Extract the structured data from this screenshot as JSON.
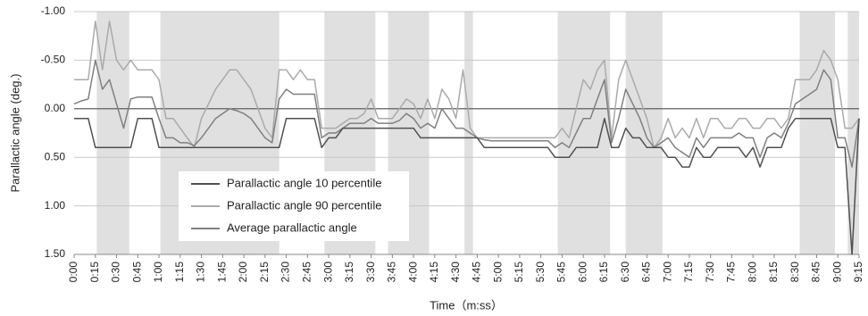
{
  "chart_data": {
    "type": "line",
    "y_label": "Parallactic angle (deg.)",
    "x_label": "Time（m:ss）",
    "y_inverted": true,
    "ylim": [
      -1.0,
      1.5
    ],
    "yticks": [
      {
        "value": -1.0,
        "label": "-1.00"
      },
      {
        "value": -0.5,
        "label": "-0.50"
      },
      {
        "value": 0,
        "label": "0.00"
      },
      {
        "value": 0.5,
        "label": "0.50"
      },
      {
        "value": 1.0,
        "label": "1.00"
      },
      {
        "value": 1.5,
        "label": "1.50"
      }
    ],
    "xlim": [
      0,
      555
    ],
    "xticks": [
      {
        "value": 0,
        "label": "0:00"
      },
      {
        "value": 15,
        "label": "0:15"
      },
      {
        "value": 30,
        "label": "0:30"
      },
      {
        "value": 45,
        "label": "0:45"
      },
      {
        "value": 60,
        "label": "1:00"
      },
      {
        "value": 75,
        "label": "1:15"
      },
      {
        "value": 90,
        "label": "1:30"
      },
      {
        "value": 105,
        "label": "1:45"
      },
      {
        "value": 120,
        "label": "2:00"
      },
      {
        "value": 135,
        "label": "2:15"
      },
      {
        "value": 150,
        "label": "2:30"
      },
      {
        "value": 165,
        "label": "2:45"
      },
      {
        "value": 180,
        "label": "3:00"
      },
      {
        "value": 195,
        "label": "3:15"
      },
      {
        "value": 210,
        "label": "3:30"
      },
      {
        "value": 225,
        "label": "3:45"
      },
      {
        "value": 240,
        "label": "4:00"
      },
      {
        "value": 255,
        "label": "4:15"
      },
      {
        "value": 270,
        "label": "4:30"
      },
      {
        "value": 285,
        "label": "4:45"
      },
      {
        "value": 300,
        "label": "5:00"
      },
      {
        "value": 315,
        "label": "5:15"
      },
      {
        "value": 330,
        "label": "5:30"
      },
      {
        "value": 345,
        "label": "5:45"
      },
      {
        "value": 360,
        "label": "6:00"
      },
      {
        "value": 375,
        "label": "6:15"
      },
      {
        "value": 390,
        "label": "6:30"
      },
      {
        "value": 405,
        "label": "6:45"
      },
      {
        "value": 420,
        "label": "7:00"
      },
      {
        "value": 435,
        "label": "7:15"
      },
      {
        "value": 450,
        "label": "7:30"
      },
      {
        "value": 465,
        "label": "7:45"
      },
      {
        "value": 480,
        "label": "8:00"
      },
      {
        "value": 495,
        "label": "8:15"
      },
      {
        "value": 510,
        "label": "8:30"
      },
      {
        "value": 525,
        "label": "8:45"
      },
      {
        "value": 540,
        "label": "9:00"
      },
      {
        "value": 555,
        "label": "9:15"
      }
    ],
    "grid": true,
    "shaded_regions": [
      [
        16,
        39
      ],
      [
        61,
        145
      ],
      [
        177,
        213
      ],
      [
        222,
        251
      ],
      [
        276,
        282
      ],
      [
        342,
        379
      ],
      [
        390,
        416
      ],
      [
        513,
        538
      ],
      [
        547,
        555
      ]
    ],
    "shade_color": "#e0e0e0",
    "x": [
      0,
      5,
      10,
      15,
      20,
      25,
      30,
      35,
      40,
      45,
      50,
      55,
      60,
      65,
      70,
      75,
      80,
      85,
      90,
      95,
      100,
      105,
      110,
      115,
      120,
      125,
      130,
      135,
      140,
      145,
      150,
      155,
      160,
      165,
      170,
      175,
      180,
      185,
      190,
      195,
      200,
      205,
      210,
      215,
      220,
      225,
      230,
      235,
      240,
      245,
      250,
      255,
      260,
      265,
      270,
      275,
      280,
      285,
      290,
      295,
      300,
      305,
      310,
      315,
      320,
      325,
      330,
      335,
      340,
      345,
      350,
      355,
      360,
      365,
      370,
      375,
      380,
      385,
      390,
      395,
      400,
      405,
      410,
      415,
      420,
      425,
      430,
      435,
      440,
      445,
      450,
      455,
      460,
      465,
      470,
      475,
      480,
      485,
      490,
      495,
      500,
      505,
      510,
      515,
      520,
      525,
      530,
      535,
      540,
      545,
      550,
      555
    ],
    "series": [
      {
        "name": "Parallactic angle 10 percentile",
        "color": "#505050",
        "values": [
          0.1,
          0.1,
          0.1,
          0.4,
          0.4,
          0.4,
          0.4,
          0.4,
          0.4,
          0.1,
          0.1,
          0.1,
          0.4,
          0.4,
          0.4,
          0.4,
          0.4,
          0.4,
          0.4,
          0.4,
          0.4,
          0.4,
          0.4,
          0.4,
          0.4,
          0.4,
          0.4,
          0.4,
          0.4,
          0.4,
          0.1,
          0.1,
          0.1,
          0.1,
          0.1,
          0.4,
          0.3,
          0.3,
          0.2,
          0.2,
          0.2,
          0.2,
          0.2,
          0.2,
          0.2,
          0.2,
          0.2,
          0.2,
          0.2,
          0.3,
          0.3,
          0.3,
          0.3,
          0.3,
          0.3,
          0.3,
          0.3,
          0.3,
          0.4,
          0.4,
          0.4,
          0.4,
          0.4,
          0.4,
          0.4,
          0.4,
          0.4,
          0.4,
          0.5,
          0.5,
          0.5,
          0.4,
          0.4,
          0.4,
          0.4,
          0.1,
          0.4,
          0.4,
          0.2,
          0.3,
          0.3,
          0.4,
          0.4,
          0.4,
          0.5,
          0.5,
          0.6,
          0.6,
          0.4,
          0.5,
          0.5,
          0.4,
          0.4,
          0.4,
          0.4,
          0.5,
          0.4,
          0.6,
          0.4,
          0.4,
          0.4,
          0.2,
          0.1,
          0.1,
          0.1,
          0.1,
          0.1,
          0.1,
          0.4,
          0.4,
          1.5,
          0.1
        ]
      },
      {
        "name": "Parallactic angle 90 percentile",
        "color": "#aaaaaa",
        "values": [
          -0.3,
          -0.3,
          -0.3,
          -0.9,
          -0.4,
          -0.9,
          -0.5,
          -0.4,
          -0.5,
          -0.4,
          -0.4,
          -0.4,
          -0.3,
          0.1,
          0.1,
          0.2,
          0.3,
          0.4,
          0.1,
          -0.05,
          -0.2,
          -0.3,
          -0.4,
          -0.4,
          -0.3,
          -0.2,
          0.0,
          0.2,
          0.3,
          -0.4,
          -0.4,
          -0.3,
          -0.4,
          -0.3,
          -0.3,
          0.2,
          0.2,
          0.2,
          0.15,
          0.1,
          0.1,
          0.05,
          -0.1,
          0.1,
          0.1,
          0.1,
          0.0,
          -0.1,
          -0.05,
          0.1,
          -0.1,
          0.1,
          -0.2,
          -0.1,
          0.1,
          -0.4,
          0.2,
          0.3,
          0.3,
          0.3,
          0.3,
          0.3,
          0.3,
          0.3,
          0.3,
          0.3,
          0.3,
          0.3,
          0.3,
          0.2,
          0.3,
          0.0,
          -0.3,
          -0.2,
          -0.4,
          -0.5,
          0.3,
          -0.3,
          -0.5,
          -0.3,
          -0.1,
          0.1,
          0.4,
          0.3,
          0.1,
          0.3,
          0.2,
          0.3,
          0.1,
          0.3,
          0.1,
          0.1,
          0.2,
          0.2,
          0.1,
          0.1,
          0.2,
          0.2,
          0.1,
          0.1,
          0.2,
          0.1,
          -0.3,
          -0.3,
          -0.3,
          -0.4,
          -0.6,
          -0.5,
          -0.3,
          0.2,
          0.2,
          0.1
        ]
      },
      {
        "name": "Average parallactic angle",
        "color": "#808080",
        "values": [
          -0.05,
          -0.08,
          -0.1,
          -0.5,
          -0.2,
          -0.3,
          -0.05,
          0.2,
          -0.1,
          -0.12,
          -0.12,
          -0.12,
          0.1,
          0.3,
          0.3,
          0.35,
          0.35,
          0.38,
          0.3,
          0.2,
          0.1,
          0.05,
          0.0,
          0.02,
          0.05,
          0.1,
          0.2,
          0.3,
          0.35,
          -0.1,
          -0.2,
          -0.15,
          -0.15,
          -0.15,
          -0.15,
          0.3,
          0.25,
          0.25,
          0.2,
          0.15,
          0.15,
          0.15,
          0.1,
          0.15,
          0.15,
          0.15,
          0.12,
          0.05,
          0.1,
          0.2,
          0.15,
          0.2,
          0.0,
          0.1,
          0.2,
          0.2,
          0.25,
          0.3,
          0.32,
          0.33,
          0.33,
          0.33,
          0.33,
          0.33,
          0.33,
          0.33,
          0.33,
          0.33,
          0.4,
          0.35,
          0.4,
          0.25,
          0.1,
          0.1,
          -0.1,
          -0.3,
          0.35,
          0.1,
          -0.2,
          -0.05,
          0.1,
          0.3,
          0.4,
          0.35,
          0.3,
          0.4,
          0.45,
          0.5,
          0.3,
          0.4,
          0.3,
          0.3,
          0.3,
          0.3,
          0.25,
          0.3,
          0.3,
          0.5,
          0.3,
          0.25,
          0.3,
          0.15,
          -0.05,
          -0.1,
          -0.15,
          -0.2,
          -0.4,
          -0.3,
          0.3,
          0.3,
          0.6,
          0.1
        ]
      }
    ]
  }
}
